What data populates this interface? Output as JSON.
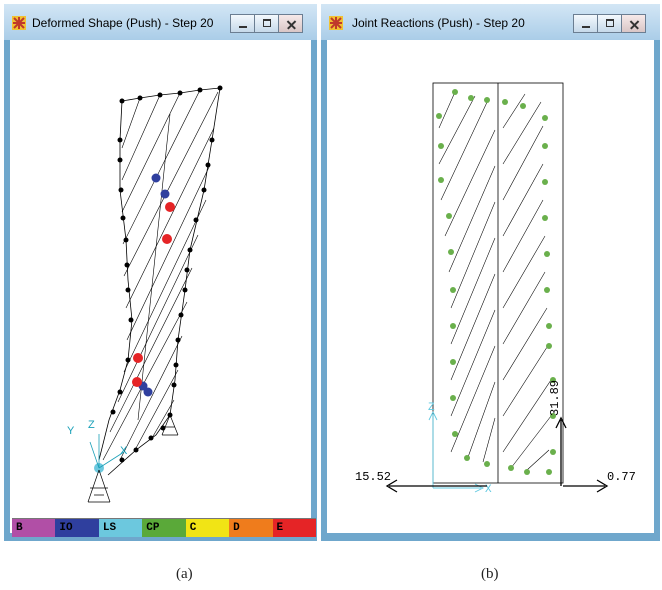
{
  "windows": [
    {
      "title": "Deformed Shape (Push) - Step 20"
    },
    {
      "title": "Joint Reactions  (Push) - Step 20"
    }
  ],
  "legend": [
    {
      "label": "B",
      "color": "#b14fa6"
    },
    {
      "label": "IO",
      "color": "#2f3f9e"
    },
    {
      "label": "LS",
      "color": "#6cc8de"
    },
    {
      "label": "CP",
      "color": "#5aa939"
    },
    {
      "label": "C",
      "color": "#f1e415"
    },
    {
      "label": "D",
      "color": "#ef7c1c"
    },
    {
      "label": "E",
      "color": "#e52426"
    }
  ],
  "left_plot": {
    "axis_labels": {
      "y": "Y",
      "z": "Z",
      "x": "X"
    }
  },
  "right_plot": {
    "reactions": {
      "left": "15.52",
      "right": "0.77",
      "vertical": "31.89"
    },
    "axis_labels": {
      "z": "Z",
      "x": "X"
    }
  },
  "captions": {
    "a": "(a)",
    "b": "(b)"
  }
}
